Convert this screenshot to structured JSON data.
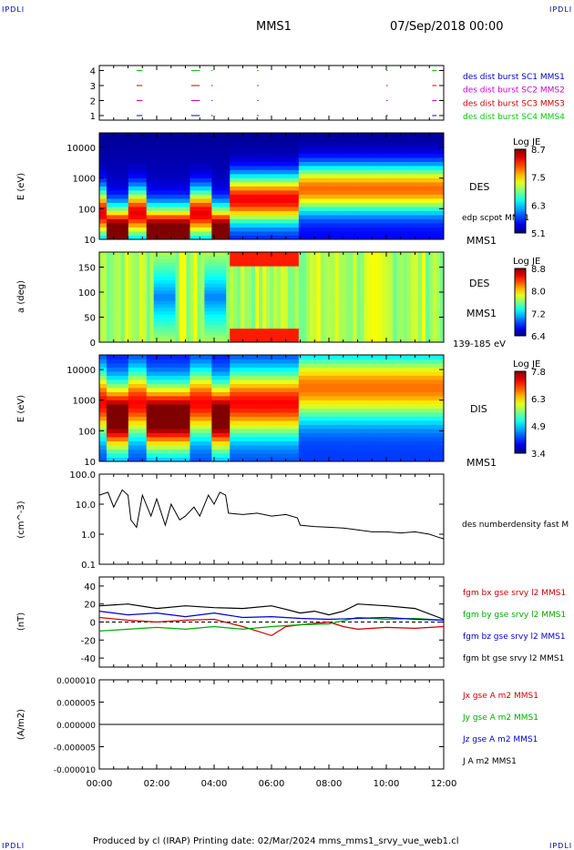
{
  "corner_label": "IPDLI",
  "header": {
    "spacecraft": "MMS1",
    "date": "07/Sep/2018 00:00"
  },
  "footer": {
    "text": "Produced by cl (IRAP)   Printing date: 02/Mar/2024   mms_mms1_srvy_vue_web1.cl"
  },
  "time_axis": {
    "ticks": [
      "00:00",
      "02:00",
      "04:00",
      "06:00",
      "08:00",
      "10:00",
      "12:00"
    ],
    "range_hours": [
      0,
      12
    ]
  },
  "chart_data": [
    {
      "type": "scatter",
      "panel": "burst-intervals",
      "y_ticks": [
        "4",
        "3",
        "2",
        "1"
      ],
      "series": [
        {
          "name": "des dist burst SC1 MMS1",
          "color": "#0000cc",
          "level": 1,
          "intervals": [
            [
              1.3,
              1.5
            ],
            [
              3.2,
              3.5
            ],
            [
              3.9,
              3.95
            ],
            [
              5.5,
              5.55
            ],
            [
              10.0,
              10.05
            ],
            [
              11.6,
              11.75
            ]
          ]
        },
        {
          "name": "des dist burst SC2 MMS2",
          "color": "#cc00cc",
          "level": 2,
          "intervals": [
            [
              1.3,
              1.5
            ],
            [
              3.2,
              3.5
            ],
            [
              3.9,
              3.95
            ],
            [
              5.5,
              5.55
            ],
            [
              10.0,
              10.05
            ],
            [
              11.6,
              11.75
            ]
          ]
        },
        {
          "name": "des dist burst SC3 MMS3",
          "color": "#cc0000",
          "level": 3,
          "intervals": [
            [
              1.3,
              1.5
            ],
            [
              3.2,
              3.5
            ],
            [
              3.9,
              3.95
            ],
            [
              5.5,
              5.55
            ],
            [
              10.0,
              10.05
            ],
            [
              11.6,
              11.75
            ]
          ]
        },
        {
          "name": "des dist burst SC4 MMS4",
          "color": "#00cc00",
          "level": 4,
          "intervals": [
            [
              1.3,
              1.5
            ],
            [
              3.2,
              3.5
            ],
            [
              3.9,
              3.95
            ],
            [
              5.5,
              5.55
            ],
            [
              10.0,
              10.05
            ],
            [
              11.6,
              11.75
            ]
          ]
        }
      ]
    },
    {
      "type": "heatmap",
      "panel": "des-energy",
      "ylabel": "E (eV)",
      "y_ticks": [
        "10000",
        "1000",
        "100",
        "10"
      ],
      "y_scale": "log",
      "ylim": [
        10,
        30000
      ],
      "labels": [
        "DES",
        "edp scpot MMS1",
        "MMS1"
      ],
      "colorbar": {
        "title": "Log JE",
        "ticks": [
          "8.7",
          "7.5",
          "6.3",
          "5.1"
        ]
      }
    },
    {
      "type": "heatmap",
      "panel": "des-pitch-angle",
      "ylabel": "a (deg)",
      "y_ticks": [
        "150",
        "100",
        "50",
        "0"
      ],
      "ylim": [
        0,
        180
      ],
      "labels": [
        "DES",
        "MMS1",
        "139-185 eV"
      ],
      "colorbar": {
        "title": "Log JE",
        "ticks": [
          "8.8",
          "8.0",
          "7.2",
          "6.4"
        ]
      }
    },
    {
      "type": "heatmap",
      "panel": "dis-energy",
      "ylabel": "E (eV)",
      "y_ticks": [
        "10000",
        "1000",
        "100",
        "10"
      ],
      "y_scale": "log",
      "ylim": [
        10,
        30000
      ],
      "labels": [
        "DIS",
        "MMS1"
      ],
      "colorbar": {
        "title": "Log JE",
        "ticks": [
          "7.8",
          "6.3",
          "4.9",
          "3.4"
        ]
      }
    },
    {
      "type": "line",
      "panel": "density",
      "ylabel": "(cm^-3)",
      "y_ticks": [
        "100.0",
        "10.0",
        "1.0",
        "0.1"
      ],
      "y_scale": "log",
      "ylim": [
        0.1,
        100
      ],
      "series": [
        {
          "name": "des numberdensity fast M",
          "color": "#000000",
          "x": [
            0,
            0.3,
            0.5,
            0.8,
            1.0,
            1.1,
            1.3,
            1.5,
            1.8,
            2.0,
            2.3,
            2.5,
            2.8,
            3.0,
            3.3,
            3.5,
            3.8,
            4.0,
            4.2,
            4.4,
            4.5,
            5.0,
            5.5,
            6.0,
            6.5,
            6.9,
            7.0,
            7.5,
            8.0,
            8.5,
            9.0,
            9.5,
            10.0,
            10.5,
            11.0,
            11.5,
            11.8,
            12.0
          ],
          "y": [
            20,
            25,
            8,
            30,
            20,
            3,
            1.7,
            20,
            4,
            15,
            2,
            10,
            3,
            4,
            8,
            4,
            20,
            10,
            25,
            20,
            5,
            4.5,
            5,
            4,
            4.5,
            3.5,
            2,
            1.8,
            1.7,
            1.6,
            1.4,
            1.2,
            1.2,
            1.1,
            1.2,
            1,
            0.8,
            0.7
          ]
        }
      ]
    },
    {
      "type": "line",
      "panel": "magnetic-field",
      "ylabel": "(nT)",
      "y_ticks": [
        "40",
        "20",
        "0",
        "-20",
        "-40"
      ],
      "ylim": [
        -50,
        50
      ],
      "series": [
        {
          "name": "fgm bx gse srvy l2 MMS1",
          "color": "#cc0000",
          "x": [
            0,
            1,
            2,
            3,
            4,
            5,
            5.5,
            6,
            6.5,
            7,
            8,
            8.5,
            9,
            10,
            11,
            12
          ],
          "y": [
            5,
            2,
            0,
            2,
            3,
            -5,
            -10,
            -15,
            -5,
            -3,
            0,
            -5,
            -8,
            -6,
            -7,
            -5
          ]
        },
        {
          "name": "fgm by gse srvy l2 MMS1",
          "color": "#00aa00",
          "x": [
            0,
            1,
            2,
            3,
            4,
            5,
            6,
            7,
            8,
            9,
            10,
            11,
            12
          ],
          "y": [
            -10,
            -8,
            -6,
            -8,
            -5,
            -8,
            -5,
            -3,
            -2,
            5,
            3,
            4,
            2
          ]
        },
        {
          "name": "fgm bz gse srvy l2 MMS1",
          "color": "#0000cc",
          "x": [
            0,
            1,
            2,
            3,
            4,
            5,
            6,
            7,
            8,
            9,
            10,
            11,
            12
          ],
          "y": [
            12,
            8,
            10,
            6,
            10,
            5,
            6,
            4,
            3,
            4,
            5,
            3,
            2
          ]
        },
        {
          "name": "fgm bt gse srvy l2 MMS1",
          "color": "#000000",
          "x": [
            0,
            1,
            2,
            3,
            4,
            5,
            6,
            6.5,
            7,
            7.5,
            8,
            8.5,
            9,
            10,
            11,
            12
          ],
          "y": [
            18,
            20,
            15,
            18,
            16,
            15,
            18,
            14,
            10,
            12,
            8,
            12,
            20,
            18,
            15,
            3
          ]
        }
      ]
    },
    {
      "type": "line",
      "panel": "current-density",
      "ylabel": "(A/m2)",
      "y_ticks": [
        "0.000010",
        "0.000005",
        "0.000000",
        "-0.000005",
        "-0.000010"
      ],
      "ylim": [
        -1e-05,
        1e-05
      ],
      "series": [
        {
          "name": "Jx gse A m2 MMS1",
          "color": "#cc0000",
          "x": [
            0,
            12
          ],
          "y": [
            0,
            0
          ]
        },
        {
          "name": "Jy gse A m2 MMS1",
          "color": "#00aa00",
          "x": [
            0,
            12
          ],
          "y": [
            0,
            0
          ]
        },
        {
          "name": "Jz gse A m2 MMS1",
          "color": "#0000cc",
          "x": [
            0,
            12
          ],
          "y": [
            0,
            0
          ]
        },
        {
          "name": "J A m2 MMS1",
          "color": "#000000",
          "x": [
            0,
            12
          ],
          "y": [
            0,
            0
          ]
        }
      ]
    }
  ]
}
